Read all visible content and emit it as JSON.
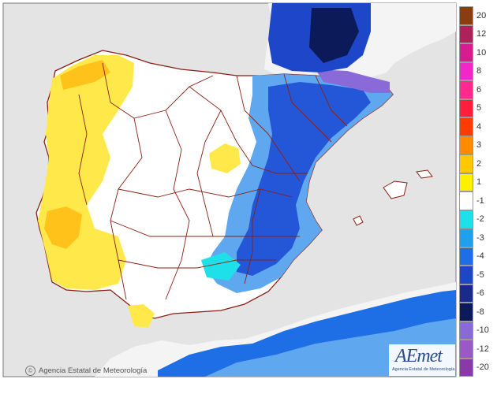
{
  "legend": {
    "items": [
      {
        "label": "20",
        "color": "#8c3d0f"
      },
      {
        "label": "12",
        "color": "#b0205a"
      },
      {
        "label": "10",
        "color": "#d61d8f"
      },
      {
        "label": "8",
        "color": "#f028c8"
      },
      {
        "label": "6",
        "color": "#ff2a8e"
      },
      {
        "label": "5",
        "color": "#ff1e3c"
      },
      {
        "label": "4",
        "color": "#ff3c00"
      },
      {
        "label": "3",
        "color": "#ff8a00"
      },
      {
        "label": "2",
        "color": "#ffc800"
      },
      {
        "label": "1",
        "color": "#fff000"
      },
      {
        "label": "-1",
        "color": "#ffffff"
      },
      {
        "label": "-2",
        "color": "#1ee0e8"
      },
      {
        "label": "-3",
        "color": "#1ea0f0"
      },
      {
        "label": "-4",
        "color": "#1e6ee6"
      },
      {
        "label": "-5",
        "color": "#1e46c8"
      },
      {
        "label": "-6",
        "color": "#1a2a8c"
      },
      {
        "label": "-8",
        "color": "#0c1a5a"
      },
      {
        "label": "-10",
        "color": "#8a6ad8"
      },
      {
        "label": "-12",
        "color": "#9a58c8"
      },
      {
        "label": "-20",
        "color": "#8a3aa8"
      }
    ]
  },
  "copyright": "Agencia Estatal de Meteorología",
  "logo": {
    "name": "AEmet",
    "subtitle": "Agencia Estatal de Meteorología"
  },
  "colors": {
    "sea": "#e6e6e6",
    "land_other": "#f7f7f7",
    "borders": "#8a1f12"
  }
}
